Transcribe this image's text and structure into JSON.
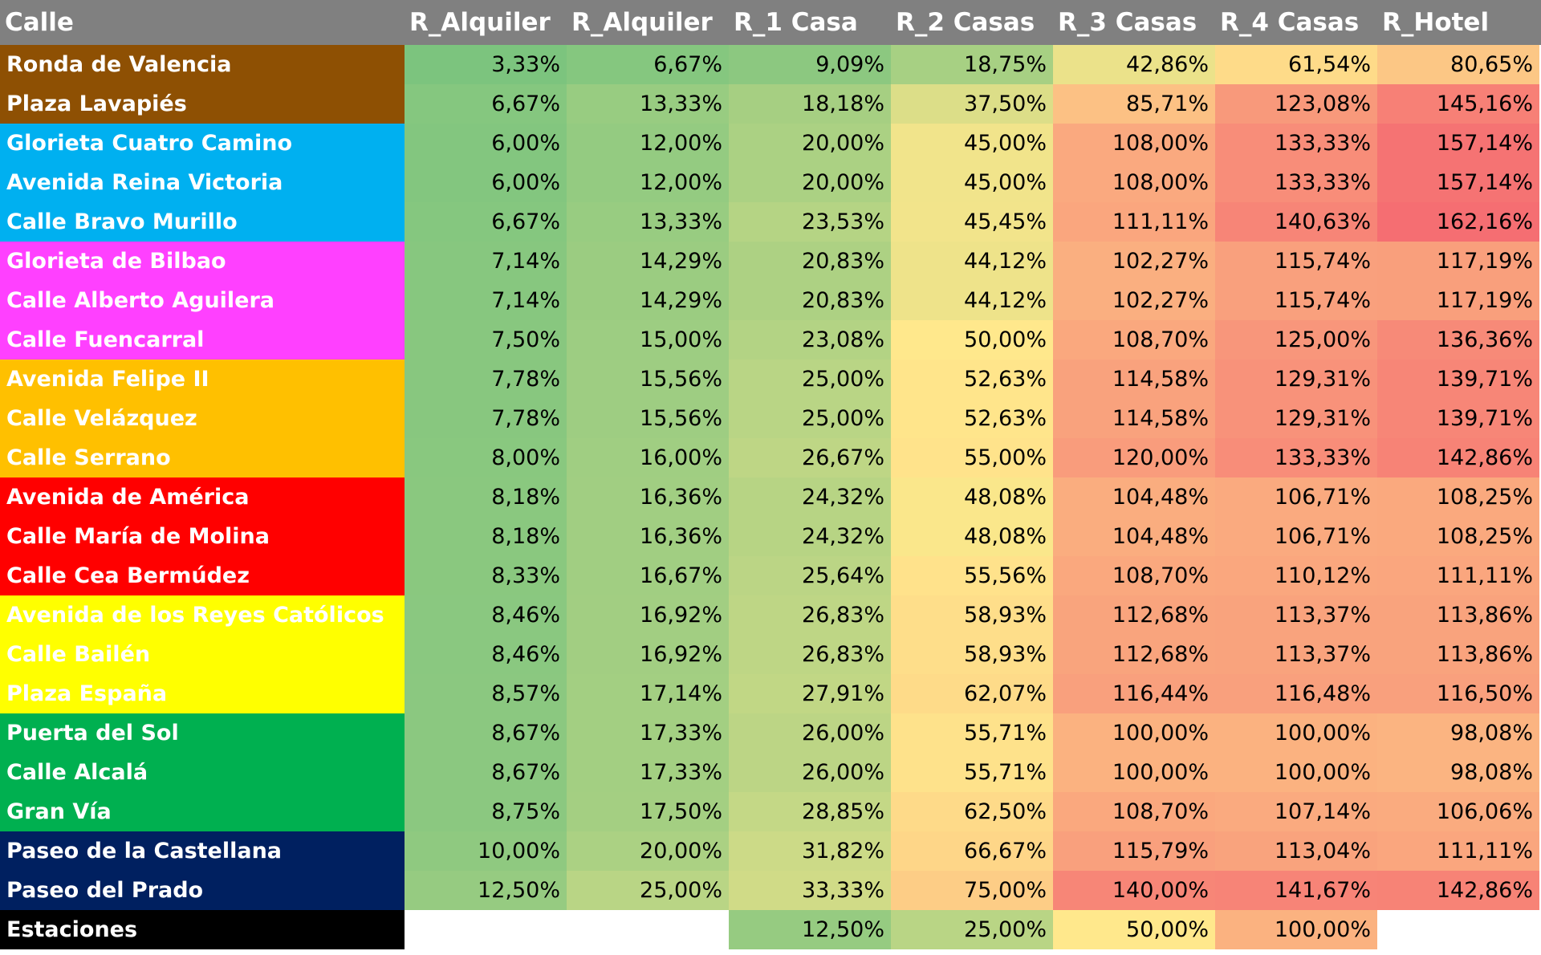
{
  "table": {
    "header": [
      "Calle",
      "R_Alquiler",
      "R_Alquiler",
      "R_1 Casa",
      "R_2 Casas",
      "R_3 Casas",
      "R_4 Casas",
      "R_Hotel"
    ],
    "rows": [
      {
        "label": "Ronda de Valencia",
        "color": "#8e5003",
        "values": [
          "3,33%",
          "6,67%",
          "9,09%",
          "18,75%",
          "42,86%",
          "61,54%",
          "80,65%"
        ]
      },
      {
        "label": "Plaza Lavapiés",
        "color": "#8e5003",
        "values": [
          "6,67%",
          "13,33%",
          "18,18%",
          "37,50%",
          "85,71%",
          "123,08%",
          "145,16%"
        ]
      },
      {
        "label": "Glorieta Cuatro Camino",
        "color": "#00b0f0",
        "values": [
          "6,00%",
          "12,00%",
          "20,00%",
          "45,00%",
          "108,00%",
          "133,33%",
          "157,14%"
        ]
      },
      {
        "label": "Avenida Reina Victoria",
        "color": "#00b0f0",
        "values": [
          "6,00%",
          "12,00%",
          "20,00%",
          "45,00%",
          "108,00%",
          "133,33%",
          "157,14%"
        ]
      },
      {
        "label": "Calle Bravo Murillo",
        "color": "#00b0f0",
        "values": [
          "6,67%",
          "13,33%",
          "23,53%",
          "45,45%",
          "111,11%",
          "140,63%",
          "162,16%"
        ]
      },
      {
        "label": "Glorieta de Bilbao",
        "color": "#ff40ff",
        "values": [
          "7,14%",
          "14,29%",
          "20,83%",
          "44,12%",
          "102,27%",
          "115,74%",
          "117,19%"
        ]
      },
      {
        "label": "Calle Alberto Aguilera",
        "color": "#ff40ff",
        "values": [
          "7,14%",
          "14,29%",
          "20,83%",
          "44,12%",
          "102,27%",
          "115,74%",
          "117,19%"
        ]
      },
      {
        "label": "Calle Fuencarral",
        "color": "#ff40ff",
        "values": [
          "7,50%",
          "15,00%",
          "23,08%",
          "50,00%",
          "108,70%",
          "125,00%",
          "136,36%"
        ]
      },
      {
        "label": "Avenida Felipe II",
        "color": "#ffc000",
        "values": [
          "7,78%",
          "15,56%",
          "25,00%",
          "52,63%",
          "114,58%",
          "129,31%",
          "139,71%"
        ]
      },
      {
        "label": "Calle Velázquez",
        "color": "#ffc000",
        "values": [
          "7,78%",
          "15,56%",
          "25,00%",
          "52,63%",
          "114,58%",
          "129,31%",
          "139,71%"
        ]
      },
      {
        "label": "Calle Serrano",
        "color": "#ffc000",
        "values": [
          "8,00%",
          "16,00%",
          "26,67%",
          "55,00%",
          "120,00%",
          "133,33%",
          "142,86%"
        ]
      },
      {
        "label": "Avenida de América",
        "color": "#ff0000",
        "values": [
          "8,18%",
          "16,36%",
          "24,32%",
          "48,08%",
          "104,48%",
          "106,71%",
          "108,25%"
        ]
      },
      {
        "label": "Calle María de Molina",
        "color": "#ff0000",
        "values": [
          "8,18%",
          "16,36%",
          "24,32%",
          "48,08%",
          "104,48%",
          "106,71%",
          "108,25%"
        ]
      },
      {
        "label": "Calle Cea Bermúdez",
        "color": "#ff0000",
        "values": [
          "8,33%",
          "16,67%",
          "25,64%",
          "55,56%",
          "108,70%",
          "110,12%",
          "111,11%"
        ]
      },
      {
        "label": "Avenida de los Reyes Católicos",
        "color": "#ffff00",
        "values": [
          "8,46%",
          "16,92%",
          "26,83%",
          "58,93%",
          "112,68%",
          "113,37%",
          "113,86%"
        ]
      },
      {
        "label": "Calle Bailén",
        "color": "#ffff00",
        "values": [
          "8,46%",
          "16,92%",
          "26,83%",
          "58,93%",
          "112,68%",
          "113,37%",
          "113,86%"
        ]
      },
      {
        "label": "Plaza España",
        "color": "#ffff00",
        "values": [
          "8,57%",
          "17,14%",
          "27,91%",
          "62,07%",
          "116,44%",
          "116,48%",
          "116,50%"
        ]
      },
      {
        "label": "Puerta del Sol",
        "color": "#00b050",
        "values": [
          "8,67%",
          "17,33%",
          "26,00%",
          "55,71%",
          "100,00%",
          "100,00%",
          "98,08%"
        ]
      },
      {
        "label": "Calle Alcalá",
        "color": "#00b050",
        "values": [
          "8,67%",
          "17,33%",
          "26,00%",
          "55,71%",
          "100,00%",
          "100,00%",
          "98,08%"
        ]
      },
      {
        "label": "Gran Vía",
        "color": "#00b050",
        "values": [
          "8,75%",
          "17,50%",
          "28,85%",
          "62,50%",
          "108,70%",
          "107,14%",
          "106,06%"
        ]
      },
      {
        "label": "Paseo de la Castellana",
        "color": "#002060",
        "values": [
          "10,00%",
          "20,00%",
          "31,82%",
          "66,67%",
          "115,79%",
          "113,04%",
          "111,11%"
        ]
      },
      {
        "label": "Paseo del Prado",
        "color": "#002060",
        "values": [
          "12,50%",
          "25,00%",
          "33,33%",
          "75,00%",
          "140,00%",
          "141,67%",
          "142,86%"
        ]
      },
      {
        "label": "Estaciones",
        "color": "#000000",
        "values": [
          null,
          null,
          "12,50%",
          "25,00%",
          "50,00%",
          "100,00%",
          null
        ]
      }
    ]
  }
}
